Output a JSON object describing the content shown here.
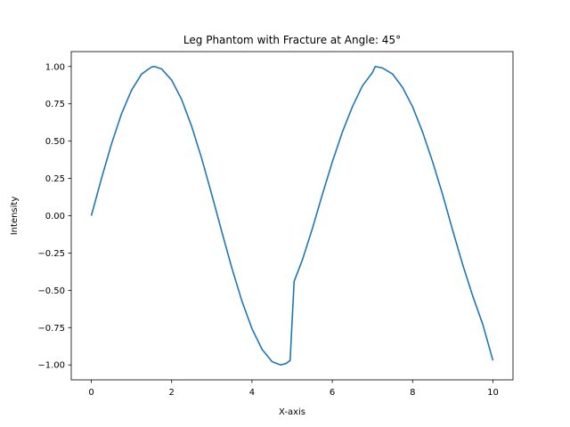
{
  "chart_data": {
    "type": "line",
    "title": "Leg Phantom with Fracture at Angle: 45°",
    "xlabel": "X-axis",
    "ylabel": "Intensity",
    "xlim": [
      -0.5,
      10.5
    ],
    "ylim": [
      -1.1,
      1.1
    ],
    "xticks": [
      0,
      2,
      4,
      6,
      8,
      10
    ],
    "xtick_labels": [
      "0",
      "2",
      "4",
      "6",
      "8",
      "10"
    ],
    "yticks": [
      -1.0,
      -0.75,
      -0.5,
      -0.25,
      0.0,
      0.25,
      0.5,
      0.75,
      1.0
    ],
    "ytick_labels": [
      "−1.00",
      "−0.75",
      "−0.50",
      "−0.25",
      "0.00",
      "0.25",
      "0.50",
      "0.75",
      "1.00"
    ],
    "grid": false,
    "legend": "none",
    "series": [
      {
        "color": "#1f77b4",
        "x": [
          0,
          0.25,
          0.5,
          0.75,
          1.0,
          1.25,
          1.5,
          1.571,
          1.75,
          2.0,
          2.25,
          2.5,
          2.75,
          3.0,
          3.25,
          3.5,
          3.75,
          4.0,
          4.25,
          4.5,
          4.712,
          4.85,
          4.95,
          5.05,
          5.25,
          5.5,
          5.75,
          6.0,
          6.25,
          6.5,
          6.75,
          7.0,
          7.07,
          7.25,
          7.5,
          7.75,
          8.0,
          8.25,
          8.5,
          8.75,
          9.0,
          9.25,
          9.5,
          9.75,
          10.0
        ],
        "y": [
          0.0,
          0.247,
          0.479,
          0.682,
          0.841,
          0.949,
          0.997,
          1.0,
          0.984,
          0.909,
          0.778,
          0.598,
          0.382,
          0.141,
          -0.108,
          -0.351,
          -0.572,
          -0.757,
          -0.895,
          -0.978,
          -1.0,
          -0.99,
          -0.97,
          -0.44,
          -0.3,
          -0.09,
          0.14,
          0.36,
          0.56,
          0.73,
          0.87,
          0.96,
          1.0,
          0.99,
          0.95,
          0.86,
          0.73,
          0.56,
          0.36,
          0.14,
          -0.1,
          -0.33,
          -0.54,
          -0.73,
          -0.97
        ]
      }
    ]
  }
}
